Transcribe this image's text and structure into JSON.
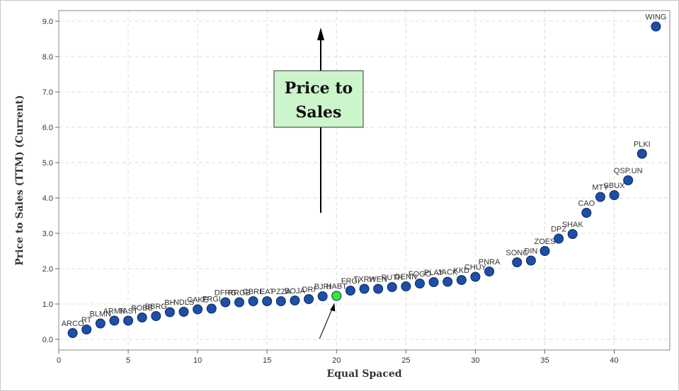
{
  "chart_data": {
    "type": "scatter",
    "title": "",
    "xlabel": "Equal Spaced",
    "ylabel": "Price to Sales (TTM) (Current)",
    "xlim": [
      0,
      44
    ],
    "ylim": [
      -0.3,
      9.3
    ],
    "x_ticks": [
      0,
      5,
      10,
      15,
      20,
      25,
      30,
      35,
      40
    ],
    "y_ticks": [
      0.0,
      1.0,
      2.0,
      3.0,
      4.0,
      5.0,
      6.0,
      7.0,
      8.0,
      9.0
    ],
    "x_tick_labels": [
      "0",
      "5",
      "10",
      "15",
      "20",
      "25",
      "30",
      "35",
      "40"
    ],
    "y_tick_labels": [
      "0.0",
      "1.0",
      "2.0",
      "3.0",
      "4.0",
      "5.0",
      "6.0",
      "7.0",
      "8.0",
      "9.0"
    ],
    "grid": true,
    "colors": {
      "point": "#1f4ea3",
      "highlight": "#39e639",
      "callout_bg": "#ccf5cc",
      "grid": "#dddddd"
    },
    "highlight_x": 20,
    "callout": {
      "lines": [
        "Price to",
        "Sales"
      ]
    },
    "points": [
      {
        "x": 1,
        "y": 0.18,
        "label": "ARCO"
      },
      {
        "x": 2,
        "y": 0.28,
        "label": "RT"
      },
      {
        "x": 3,
        "y": 0.45,
        "label": "BLMN"
      },
      {
        "x": 4,
        "y": 0.53,
        "label": "ARMK"
      },
      {
        "x": 5,
        "y": 0.53,
        "label": "TAST"
      },
      {
        "x": 6,
        "y": 0.62,
        "label": "BOBE"
      },
      {
        "x": 7,
        "y": 0.66,
        "label": "BBRG"
      },
      {
        "x": 8,
        "y": 0.77,
        "label": "BH"
      },
      {
        "x": 9,
        "y": 0.78,
        "label": "NDLS"
      },
      {
        "x": 10,
        "y": 0.85,
        "label": "CAKE"
      },
      {
        "x": 11,
        "y": 0.87,
        "label": "FRGI"
      },
      {
        "x": 12,
        "y": 1.05,
        "label": "DFRG"
      },
      {
        "x": 13,
        "y": 1.05,
        "label": "RRGB"
      },
      {
        "x": 14,
        "y": 1.08,
        "label": "CBRL"
      },
      {
        "x": 15,
        "y": 1.08,
        "label": "EAT"
      },
      {
        "x": 16,
        "y": 1.08,
        "label": "PZZA"
      },
      {
        "x": 17,
        "y": 1.1,
        "label": "BOJA"
      },
      {
        "x": 18,
        "y": 1.14,
        "label": "DRI"
      },
      {
        "x": 19,
        "y": 1.22,
        "label": "BJRI"
      },
      {
        "x": 20,
        "y": 1.23,
        "label": "HABT"
      },
      {
        "x": 21,
        "y": 1.38,
        "label": "FRGI"
      },
      {
        "x": 22,
        "y": 1.43,
        "label": "TXRH"
      },
      {
        "x": 23,
        "y": 1.43,
        "label": "WEN"
      },
      {
        "x": 24,
        "y": 1.48,
        "label": "RUTH"
      },
      {
        "x": 25,
        "y": 1.5,
        "label": "DENN"
      },
      {
        "x": 26,
        "y": 1.58,
        "label": "FOGO"
      },
      {
        "x": 27,
        "y": 1.62,
        "label": "PLAY"
      },
      {
        "x": 28,
        "y": 1.63,
        "label": "JACK"
      },
      {
        "x": 29,
        "y": 1.68,
        "label": "KKD"
      },
      {
        "x": 30,
        "y": 1.77,
        "label": "CHUY"
      },
      {
        "x": 31,
        "y": 1.92,
        "label": "PNRA"
      },
      {
        "x": 33,
        "y": 2.18,
        "label": "SONC"
      },
      {
        "x": 34,
        "y": 2.23,
        "label": "DIN"
      },
      {
        "x": 35,
        "y": 2.5,
        "label": "ZOES"
      },
      {
        "x": 36,
        "y": 2.85,
        "label": "DPZ"
      },
      {
        "x": 37,
        "y": 2.98,
        "label": "SHAK"
      },
      {
        "x": 38,
        "y": 3.58,
        "label": "CAO"
      },
      {
        "x": 39,
        "y": 4.03,
        "label": "MTY"
      },
      {
        "x": 40,
        "y": 4.08,
        "label": "SBUX"
      },
      {
        "x": 41,
        "y": 4.5,
        "label": "QSP.UN"
      },
      {
        "x": 42,
        "y": 5.25,
        "label": "PLKI"
      },
      {
        "x": 43,
        "y": 8.85,
        "label": "WING"
      }
    ]
  }
}
